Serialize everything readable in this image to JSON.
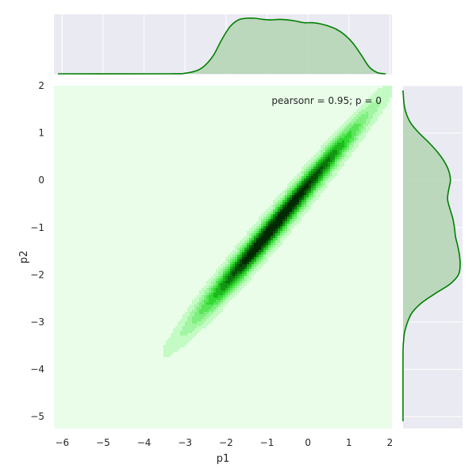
{
  "chart_data": {
    "type": "jointplot-kde",
    "xlabel": "p1",
    "ylabel": "p2",
    "xlim": [
      -6.2,
      2.05
    ],
    "ylim": [
      -5.25,
      2.0
    ],
    "x_ticks": [
      -6,
      -5,
      -4,
      -3,
      -2,
      -1,
      0,
      1,
      2
    ],
    "y_ticks": [
      -5,
      -4,
      -3,
      -2,
      -1,
      0,
      1,
      2
    ],
    "x_tick_labels": [
      "−6",
      "−5",
      "−4",
      "−3",
      "−2",
      "−1",
      "0",
      "1",
      "2"
    ],
    "y_tick_labels": [
      "−5",
      "−4",
      "−3",
      "−2",
      "−1",
      "0",
      "1",
      "2"
    ],
    "annotation": "pearsonr = 0.95; p = 0",
    "grid": true,
    "colors": {
      "joint_background": "#e9fde9",
      "marginal_background": "#eaeaf2",
      "line": "#008000",
      "fill": "#b3d3b3",
      "grid": "#ffffff",
      "contour_levels": [
        "#c4fbc4",
        "#a2f5a2",
        "#7fef7f",
        "#58e558",
        "#31d931",
        "#1db91d",
        "#139613",
        "#0c720c",
        "#064d06",
        "#022a02"
      ]
    },
    "joint_density": {
      "components": [
        {
          "mean": [
            0.3,
            0.25
          ],
          "sigma_major": 0.55,
          "sigma_minor": 0.07,
          "weight": 1.0
        },
        {
          "mean": [
            -0.8,
            -0.95
          ],
          "sigma_major": 0.6,
          "sigma_minor": 0.08,
          "weight": 0.95
        },
        {
          "mean": [
            -1.6,
            -1.8
          ],
          "sigma_major": 0.55,
          "sigma_minor": 0.08,
          "weight": 0.95
        }
      ],
      "angle_deg": 45,
      "spread_major": 2.2,
      "spread_minor": 1.9
    },
    "marginal_x": {
      "x": [
        -6.1,
        -3.4,
        -3.0,
        -2.7,
        -2.5,
        -2.3,
        -2.1,
        -1.9,
        -1.7,
        -1.5,
        -1.3,
        -1.1,
        -0.9,
        -0.7,
        -0.5,
        -0.3,
        -0.1,
        0.1,
        0.3,
        0.5,
        0.7,
        0.9,
        1.1,
        1.3,
        1.5,
        1.7,
        1.9
      ],
      "density": [
        0.0,
        0.0,
        0.01,
        0.06,
        0.16,
        0.34,
        0.62,
        0.85,
        0.97,
        1.0,
        1.0,
        0.98,
        0.97,
        0.98,
        0.97,
        0.95,
        0.92,
        0.92,
        0.9,
        0.86,
        0.8,
        0.7,
        0.55,
        0.34,
        0.12,
        0.02,
        0.0
      ]
    },
    "marginal_y": {
      "y": [
        -5.1,
        -3.7,
        -3.4,
        -3.2,
        -3.0,
        -2.8,
        -2.6,
        -2.4,
        -2.2,
        -2.0,
        -1.8,
        -1.6,
        -1.4,
        -1.2,
        -1.0,
        -0.8,
        -0.6,
        -0.4,
        -0.2,
        0.0,
        0.2,
        0.4,
        0.6,
        0.8,
        1.0,
        1.2,
        1.4,
        1.6,
        1.9
      ],
      "density": [
        0.0,
        0.0,
        0.01,
        0.03,
        0.08,
        0.16,
        0.32,
        0.56,
        0.82,
        0.97,
        1.0,
        0.99,
        0.96,
        0.92,
        0.9,
        0.87,
        0.82,
        0.78,
        0.8,
        0.83,
        0.8,
        0.72,
        0.6,
        0.45,
        0.28,
        0.14,
        0.06,
        0.02,
        0.0
      ]
    }
  }
}
